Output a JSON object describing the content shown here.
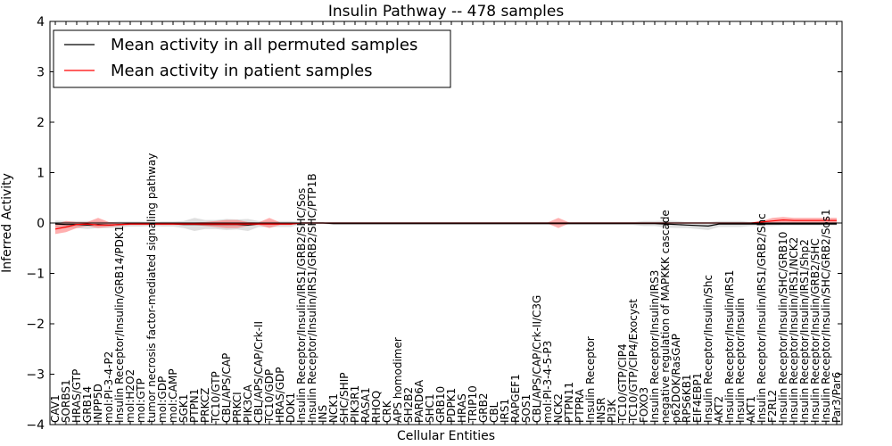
{
  "chart_data": {
    "type": "line",
    "title": "Insulin Pathway -- 478 samples",
    "xlabel": "Cellular Entities",
    "ylabel": "Inferred Activity",
    "ylim": [
      -4,
      4
    ],
    "yticks": [
      {
        "value": 4,
        "label": "4"
      },
      {
        "value": 3,
        "label": "3"
      },
      {
        "value": 2,
        "label": "2"
      },
      {
        "value": 1,
        "label": "1"
      },
      {
        "value": 0,
        "label": "0"
      },
      {
        "value": -1,
        "label": "−1"
      },
      {
        "value": -2,
        "label": "−2"
      },
      {
        "value": -3,
        "label": "−3"
      },
      {
        "value": -4,
        "label": "−4"
      }
    ],
    "grid": false,
    "legend_position": "top-left",
    "categories": [
      "CAV1",
      "SORBS1",
      "HRAS/GTP",
      "GRB14",
      "INPP5D",
      "mol:PI-3-4-P2",
      "Insulin Receptor/Insulin/GRB14/PDK1",
      "mol:H2O2",
      "mol:GTP",
      "tumor necrosis factor-mediated signaling pathway",
      "mol:GDP",
      "mol:CAMP",
      "SGK1",
      "PTPN1",
      "PRKCZ",
      "TC10/GTP",
      "CBL/APS/CAP",
      "PRKCI",
      "PIK3CA",
      "CBL/APS/CAP/Crk-II",
      "TC10/GDP",
      "HRAS/GDP",
      "DOK1",
      "Insulin Receptor/Insulin/IRS1/GRB2/SHC/Sos",
      "Insulin Receptor/Insulin/IRS1/GRB2/SHC/PTP1B",
      "INS",
      "NCK1",
      "SHC/SHIP",
      "PIK3R1",
      "RASA1",
      "RHOQ",
      "CRK",
      "APS homodimer",
      "SH2B2",
      "PARD6A",
      "SHC1",
      "GRB10",
      "PDPK1",
      "HRAS",
      "TRIP10",
      "GRB2",
      "CBL",
      "IRS1",
      "RAPGEF1",
      "SOS1",
      "CBL/APS/CAP/Crk-II/C3G",
      "mol:PI-3-4-5-P3",
      "NCK2",
      "PTPN11",
      "PTPRA",
      "Insulin Receptor",
      "INSR",
      "PI3K",
      "TC10/GTP/CIP4",
      "TC10/GTP/CIP4/Exocyst",
      "FOXO3",
      "Insulin Receptor/Insulin/IRS3",
      "negative regulation of MAPKKK cascade",
      "p62DOK/RasGAP",
      "RPS6KB1",
      "EIF4EBP1",
      "Insulin Receptor/Insulin/Shc",
      "AKT2",
      "Insulin Receptor/Insulin/IRS1",
      "Insulin Receptor/Insulin",
      "AKT1",
      "Insulin Receptor/Insulin/IRS1/GRB2/Shc",
      "F2RL2",
      "Insulin Receptor/Insulin/SHC/GRB10",
      "Insulin Receptor/Insulin/IRS1/NCK2",
      "Insulin Receptor/Insulin/IRS1/Shp2",
      "Insulin Receptor/Insulin/GRB2/SHC",
      "Insulin Receptor/Insulin/SHC/GRB2/Sos1",
      "Par3/Par6"
    ],
    "series": [
      {
        "name": "Mean activity in all permuted samples",
        "color": "#000000",
        "fill_color": "#b0b0b0",
        "values": [
          -0.02,
          -0.03,
          -0.03,
          -0.04,
          -0.03,
          -0.04,
          -0.03,
          -0.02,
          -0.02,
          -0.02,
          -0.02,
          -0.02,
          -0.03,
          -0.03,
          -0.03,
          -0.03,
          -0.03,
          -0.03,
          -0.04,
          -0.02,
          -0.02,
          -0.02,
          -0.02,
          0.0,
          0.0,
          0.0,
          -0.01,
          -0.01,
          -0.01,
          -0.01,
          -0.01,
          -0.01,
          -0.01,
          -0.01,
          -0.01,
          -0.01,
          -0.01,
          -0.01,
          -0.01,
          -0.01,
          -0.01,
          -0.01,
          -0.01,
          -0.01,
          -0.01,
          -0.01,
          -0.01,
          -0.01,
          -0.01,
          -0.01,
          -0.01,
          -0.01,
          -0.01,
          -0.01,
          -0.01,
          -0.01,
          -0.01,
          -0.02,
          -0.03,
          -0.04,
          -0.05,
          -0.06,
          -0.02,
          -0.02,
          -0.02,
          -0.02,
          -0.02,
          -0.02,
          -0.02,
          -0.02,
          -0.02,
          -0.02,
          -0.02,
          -0.02
        ],
        "band_low": [
          -0.09,
          -0.1,
          -0.1,
          -0.12,
          -0.1,
          -0.1,
          -0.09,
          -0.07,
          -0.07,
          -0.06,
          -0.07,
          -0.07,
          -0.1,
          -0.16,
          -0.12,
          -0.12,
          -0.14,
          -0.13,
          -0.16,
          -0.08,
          -0.08,
          -0.08,
          -0.08,
          -0.02,
          -0.02,
          -0.02,
          -0.04,
          -0.04,
          -0.04,
          -0.04,
          -0.04,
          -0.04,
          -0.04,
          -0.04,
          -0.04,
          -0.04,
          -0.04,
          -0.04,
          -0.04,
          -0.04,
          -0.04,
          -0.04,
          -0.04,
          -0.04,
          -0.04,
          -0.04,
          -0.04,
          -0.04,
          -0.04,
          -0.04,
          -0.04,
          -0.04,
          -0.04,
          -0.04,
          -0.04,
          -0.06,
          -0.06,
          -0.09,
          -0.1,
          -0.1,
          -0.12,
          -0.14,
          -0.08,
          -0.08,
          -0.08,
          -0.06,
          -0.06,
          -0.06,
          -0.05,
          -0.05,
          -0.05,
          -0.05,
          -0.05,
          -0.05
        ],
        "band_high": [
          0.05,
          0.04,
          0.04,
          0.04,
          0.04,
          0.02,
          0.03,
          0.03,
          0.03,
          0.02,
          0.03,
          0.03,
          0.04,
          0.1,
          0.06,
          0.06,
          0.08,
          0.07,
          0.08,
          0.04,
          0.04,
          0.04,
          0.04,
          0.02,
          0.02,
          0.02,
          0.02,
          0.02,
          0.02,
          0.02,
          0.02,
          0.02,
          0.02,
          0.02,
          0.02,
          0.02,
          0.02,
          0.02,
          0.02,
          0.02,
          0.02,
          0.02,
          0.02,
          0.02,
          0.02,
          0.02,
          0.02,
          0.02,
          0.02,
          0.02,
          0.02,
          0.02,
          0.02,
          0.02,
          0.02,
          0.04,
          0.04,
          0.05,
          0.04,
          0.02,
          0.02,
          0.02,
          0.04,
          0.04,
          0.04,
          0.02,
          0.02,
          0.02,
          0.02,
          0.02,
          0.02,
          0.02,
          0.02,
          0.02
        ]
      },
      {
        "name": "Mean activity in patient samples",
        "color": "#ff0000",
        "fill_color": "#ff6060",
        "values": [
          -0.12,
          -0.08,
          -0.03,
          -0.02,
          -0.04,
          -0.04,
          -0.03,
          -0.02,
          -0.02,
          -0.02,
          -0.02,
          -0.02,
          -0.02,
          -0.02,
          -0.02,
          -0.02,
          -0.02,
          -0.02,
          -0.02,
          -0.02,
          -0.02,
          -0.02,
          -0.02,
          0.0,
          0.0,
          0.0,
          0.0,
          0.0,
          0.0,
          0.0,
          0.0,
          0.0,
          0.0,
          0.0,
          0.0,
          0.0,
          0.0,
          0.0,
          0.0,
          0.0,
          0.0,
          0.0,
          0.0,
          0.0,
          0.0,
          0.0,
          0.0,
          0.0,
          0.0,
          0.0,
          0.0,
          0.0,
          0.0,
          0.0,
          0.0,
          0.0,
          0.0,
          0.0,
          0.0,
          0.0,
          0.0,
          0.0,
          0.0,
          0.0,
          0.0,
          0.0,
          0.02,
          0.04,
          0.06,
          0.05,
          0.05,
          0.05,
          0.05,
          0.05
        ],
        "band_low": [
          -0.22,
          -0.18,
          -0.1,
          -0.06,
          -0.1,
          -0.08,
          -0.06,
          -0.04,
          -0.04,
          -0.04,
          -0.04,
          -0.04,
          -0.04,
          -0.04,
          -0.06,
          -0.08,
          -0.1,
          -0.1,
          -0.06,
          -0.04,
          -0.1,
          -0.04,
          -0.04,
          -0.01,
          -0.01,
          -0.01,
          -0.01,
          -0.01,
          -0.01,
          -0.01,
          -0.01,
          -0.01,
          -0.01,
          -0.01,
          -0.01,
          -0.01,
          -0.01,
          -0.01,
          -0.01,
          -0.01,
          -0.01,
          -0.01,
          -0.01,
          -0.01,
          -0.01,
          -0.01,
          -0.01,
          -0.1,
          -0.01,
          -0.01,
          -0.01,
          -0.01,
          -0.01,
          -0.01,
          -0.01,
          -0.01,
          -0.01,
          -0.01,
          -0.01,
          -0.01,
          -0.01,
          -0.01,
          -0.01,
          -0.01,
          -0.01,
          -0.01,
          -0.01,
          0.0,
          0.0,
          0.0,
          0.0,
          0.0,
          0.0,
          0.0
        ],
        "band_high": [
          -0.02,
          0.04,
          0.02,
          0.02,
          0.1,
          0.02,
          0.01,
          0.01,
          0.01,
          0.01,
          0.01,
          0.01,
          0.01,
          0.01,
          0.02,
          0.04,
          0.06,
          0.06,
          0.02,
          0.01,
          0.1,
          0.01,
          0.01,
          0.01,
          0.01,
          0.01,
          0.01,
          0.01,
          0.01,
          0.01,
          0.01,
          0.01,
          0.01,
          0.01,
          0.01,
          0.01,
          0.01,
          0.01,
          0.01,
          0.01,
          0.01,
          0.01,
          0.01,
          0.01,
          0.01,
          0.01,
          0.01,
          0.1,
          0.01,
          0.01,
          0.01,
          0.01,
          0.01,
          0.01,
          0.01,
          0.01,
          0.01,
          0.01,
          0.01,
          0.01,
          0.01,
          0.01,
          0.01,
          0.01,
          0.01,
          0.01,
          0.04,
          0.1,
          0.12,
          0.1,
          0.1,
          0.1,
          0.1,
          0.1
        ]
      }
    ]
  }
}
